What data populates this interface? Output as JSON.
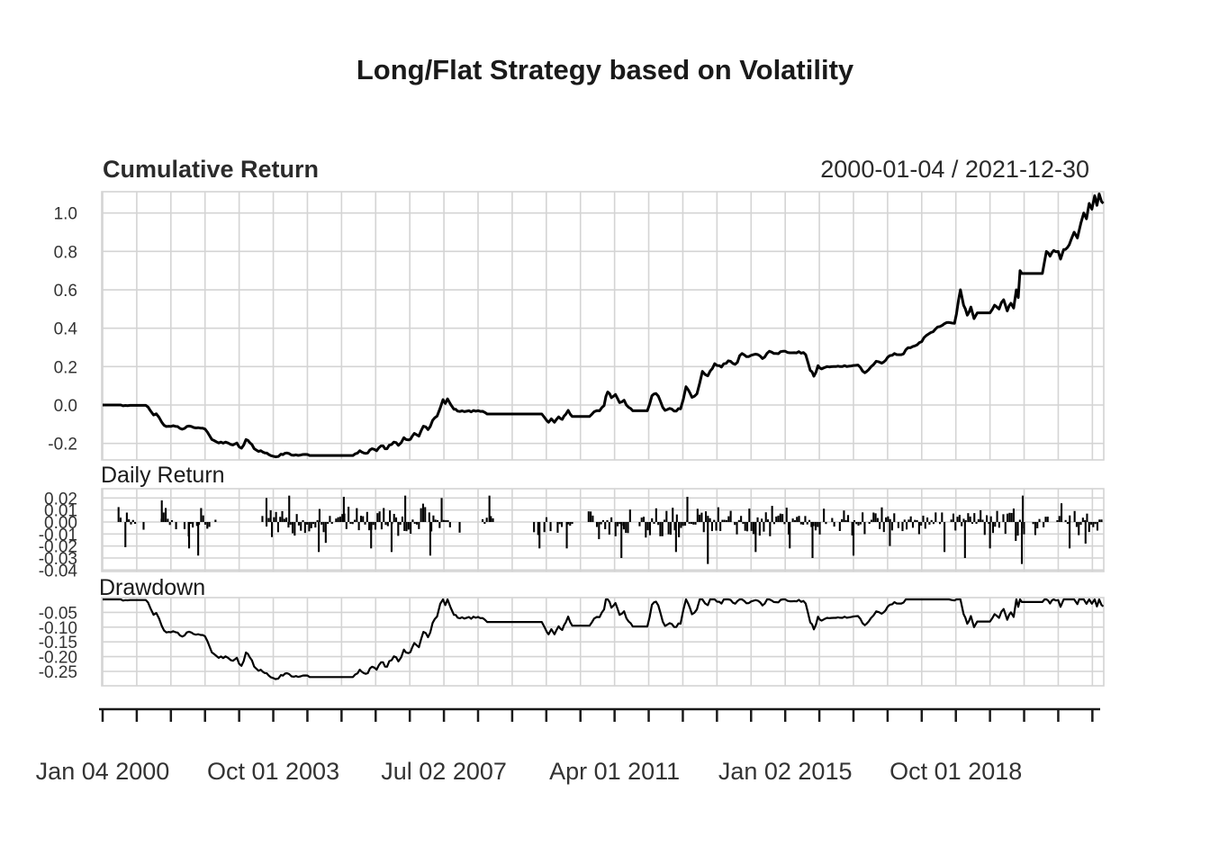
{
  "title": "Long/Flat Strategy based on Volatility",
  "colors": {
    "line": "#000000",
    "grid": "#d4d4d4",
    "axis": "#1a1a1a",
    "tick_text": "#333333",
    "title_text": "#1a1a1a"
  },
  "panels": {
    "cumulative": {
      "title": "Cumulative Return",
      "range_label": "2000-01-04 / 2021-12-30",
      "ytick_labels": [
        "1.0",
        "0.8",
        "0.6",
        "0.4",
        "0.2",
        "0.0",
        "-0.2"
      ],
      "ytick_values": [
        1.0,
        0.8,
        0.6,
        0.4,
        0.2,
        0.0,
        -0.2
      ],
      "ylim": [
        -0.3,
        1.11
      ]
    },
    "daily": {
      "title": "Daily Return",
      "ytick_labels": [
        "0.02",
        "0.01",
        "0.00",
        "-0.01",
        "-0.02",
        "-0.03",
        "-0.04"
      ],
      "ytick_values": [
        0.02,
        0.01,
        0.0,
        -0.01,
        -0.02,
        -0.03,
        -0.04
      ],
      "ylim": [
        -0.0413,
        0.0278
      ]
    },
    "drawdown": {
      "title": "Drawdown",
      "ytick_labels": [
        "-0.05",
        "-0.10",
        "-0.15",
        "-0.20",
        "-0.25"
      ],
      "ytick_values": [
        -0.05,
        -0.1,
        -0.15,
        -0.2,
        -0.25
      ],
      "ylim": [
        -0.299,
        0.0
      ]
    }
  },
  "xaxis": {
    "labels": [
      "Jan 04 2000",
      "Oct 01 2003",
      "Jul 02 2007",
      "Apr 01 2011",
      "Jan 02 2015",
      "Oct 01 2018"
    ],
    "label_years": [
      2000.0,
      2003.75,
      2007.5,
      2011.25,
      2015.0,
      2018.75
    ],
    "tick_interval_years": 0.75,
    "num_ticks": 30,
    "start_year": 2000.0,
    "end_year": 2021.99
  },
  "chart_data": [
    {
      "type": "line",
      "name": "Cumulative Return",
      "x_unit": "decimal_year",
      "points": [
        [
          2000.0,
          0.0
        ],
        [
          2000.4,
          0.0
        ],
        [
          2000.45,
          -0.004
        ],
        [
          2000.6,
          -0.002
        ],
        [
          2000.95,
          -0.002
        ],
        [
          2001.05,
          -0.03
        ],
        [
          2001.12,
          -0.052
        ],
        [
          2001.18,
          -0.046
        ],
        [
          2001.3,
          -0.09
        ],
        [
          2001.4,
          -0.112
        ],
        [
          2001.55,
          -0.108
        ],
        [
          2001.75,
          -0.126
        ],
        [
          2001.85,
          -0.112
        ],
        [
          2002.1,
          -0.118
        ],
        [
          2002.25,
          -0.125
        ],
        [
          2002.35,
          -0.16
        ],
        [
          2002.45,
          -0.185
        ],
        [
          2002.55,
          -0.198
        ],
        [
          2002.7,
          -0.193
        ],
        [
          2002.82,
          -0.206
        ],
        [
          2002.95,
          -0.198
        ],
        [
          2003.05,
          -0.225
        ],
        [
          2003.15,
          -0.18
        ],
        [
          2003.28,
          -0.206
        ],
        [
          2003.38,
          -0.235
        ],
        [
          2003.52,
          -0.245
        ],
        [
          2003.65,
          -0.258
        ],
        [
          2003.8,
          -0.27
        ],
        [
          2003.92,
          -0.256
        ],
        [
          2004.05,
          -0.25
        ],
        [
          2004.2,
          -0.262
        ],
        [
          2004.4,
          -0.258
        ],
        [
          2004.55,
          -0.263
        ],
        [
          2005.5,
          -0.263
        ],
        [
          2005.65,
          -0.238
        ],
        [
          2005.78,
          -0.252
        ],
        [
          2005.92,
          -0.228
        ],
        [
          2006.02,
          -0.238
        ],
        [
          2006.12,
          -0.213
        ],
        [
          2006.25,
          -0.228
        ],
        [
          2006.4,
          -0.193
        ],
        [
          2006.5,
          -0.21
        ],
        [
          2006.62,
          -0.17
        ],
        [
          2006.72,
          -0.182
        ],
        [
          2006.85,
          -0.148
        ],
        [
          2006.95,
          -0.162
        ],
        [
          2007.05,
          -0.11
        ],
        [
          2007.15,
          -0.128
        ],
        [
          2007.25,
          -0.08
        ],
        [
          2007.35,
          -0.058
        ],
        [
          2007.42,
          -0.015
        ],
        [
          2007.48,
          0.028
        ],
        [
          2007.53,
          0.008
        ],
        [
          2007.58,
          0.032
        ],
        [
          2007.65,
          0.002
        ],
        [
          2007.72,
          -0.022
        ],
        [
          2007.8,
          -0.032
        ],
        [
          2008.35,
          -0.033
        ],
        [
          2008.45,
          -0.047
        ],
        [
          2009.65,
          -0.047
        ],
        [
          2009.72,
          -0.068
        ],
        [
          2009.8,
          -0.09
        ],
        [
          2009.86,
          -0.072
        ],
        [
          2009.93,
          -0.09
        ],
        [
          2010.02,
          -0.062
        ],
        [
          2010.1,
          -0.075
        ],
        [
          2010.18,
          -0.048
        ],
        [
          2010.23,
          -0.028
        ],
        [
          2010.32,
          -0.06
        ],
        [
          2010.7,
          -0.06
        ],
        [
          2010.8,
          -0.035
        ],
        [
          2010.92,
          -0.03
        ],
        [
          2011.02,
          -0.003
        ],
        [
          2011.1,
          0.068
        ],
        [
          2011.18,
          0.038
        ],
        [
          2011.27,
          0.055
        ],
        [
          2011.36,
          0.012
        ],
        [
          2011.46,
          0.025
        ],
        [
          2011.56,
          -0.012
        ],
        [
          2011.65,
          -0.03
        ],
        [
          2011.97,
          -0.03
        ],
        [
          2012.07,
          0.048
        ],
        [
          2012.16,
          0.06
        ],
        [
          2012.26,
          0.018
        ],
        [
          2012.36,
          -0.028
        ],
        [
          2012.46,
          -0.018
        ],
        [
          2012.56,
          -0.032
        ],
        [
          2012.7,
          -0.02
        ],
        [
          2012.82,
          0.095
        ],
        [
          2012.95,
          0.04
        ],
        [
          2013.06,
          0.058
        ],
        [
          2013.18,
          0.175
        ],
        [
          2013.3,
          0.152
        ],
        [
          2013.45,
          0.215
        ],
        [
          2013.6,
          0.198
        ],
        [
          2013.75,
          0.23
        ],
        [
          2013.9,
          0.212
        ],
        [
          2014.05,
          0.268
        ],
        [
          2014.2,
          0.252
        ],
        [
          2014.35,
          0.265
        ],
        [
          2014.5,
          0.242
        ],
        [
          2014.65,
          0.28
        ],
        [
          2014.8,
          0.268
        ],
        [
          2014.95,
          0.28
        ],
        [
          2015.15,
          0.272
        ],
        [
          2015.3,
          0.278
        ],
        [
          2015.45,
          0.262
        ],
        [
          2015.55,
          0.18
        ],
        [
          2015.63,
          0.15
        ],
        [
          2015.72,
          0.205
        ],
        [
          2015.8,
          0.188
        ],
        [
          2015.92,
          0.2
        ],
        [
          2016.4,
          0.202
        ],
        [
          2016.6,
          0.208
        ],
        [
          2016.75,
          0.168
        ],
        [
          2016.88,
          0.198
        ],
        [
          2017.0,
          0.228
        ],
        [
          2017.12,
          0.218
        ],
        [
          2017.25,
          0.248
        ],
        [
          2017.4,
          0.268
        ],
        [
          2017.55,
          0.262
        ],
        [
          2017.7,
          0.298
        ],
        [
          2017.85,
          0.308
        ],
        [
          2018.0,
          0.33
        ],
        [
          2018.15,
          0.37
        ],
        [
          2018.3,
          0.395
        ],
        [
          2018.45,
          0.415
        ],
        [
          2018.6,
          0.43
        ],
        [
          2018.72,
          0.425
        ],
        [
          2018.85,
          0.6
        ],
        [
          2018.92,
          0.52
        ],
        [
          2019.0,
          0.468
        ],
        [
          2019.08,
          0.51
        ],
        [
          2019.15,
          0.45
        ],
        [
          2019.22,
          0.48
        ],
        [
          2019.3,
          0.48
        ],
        [
          2019.5,
          0.48
        ],
        [
          2019.6,
          0.52
        ],
        [
          2019.7,
          0.5
        ],
        [
          2019.8,
          0.548
        ],
        [
          2019.88,
          0.49
        ],
        [
          2019.96,
          0.53
        ],
        [
          2020.02,
          0.505
        ],
        [
          2020.08,
          0.6
        ],
        [
          2020.12,
          0.56
        ],
        [
          2020.16,
          0.7
        ],
        [
          2020.2,
          0.685
        ],
        [
          2020.65,
          0.685
        ],
        [
          2020.7,
          0.75
        ],
        [
          2020.74,
          0.8
        ],
        [
          2020.82,
          0.775
        ],
        [
          2020.9,
          0.805
        ],
        [
          2021.0,
          0.8
        ],
        [
          2021.05,
          0.76
        ],
        [
          2021.12,
          0.81
        ],
        [
          2021.2,
          0.82
        ],
        [
          2021.28,
          0.86
        ],
        [
          2021.35,
          0.9
        ],
        [
          2021.42,
          0.87
        ],
        [
          2021.5,
          0.95
        ],
        [
          2021.56,
          1.0
        ],
        [
          2021.62,
          0.97
        ],
        [
          2021.68,
          1.05
        ],
        [
          2021.74,
          1.02
        ],
        [
          2021.8,
          1.09
        ],
        [
          2021.85,
          1.04
        ],
        [
          2021.9,
          1.1
        ],
        [
          2021.95,
          1.06
        ],
        [
          2021.99,
          1.05
        ]
      ]
    },
    {
      "type": "bar",
      "name": "Daily Return",
      "x_unit": "decimal_year",
      "typical_amplitude": 0.012,
      "clusters": [
        [
          2000.35,
          2000.75,
          0.55
        ],
        [
          2000.9,
          2001.02,
          0.6
        ],
        [
          2001.25,
          2001.62,
          0.7
        ],
        [
          2001.8,
          2002.38,
          0.85
        ],
        [
          2002.48,
          2002.72,
          0.55
        ],
        [
          2003.42,
          2003.72,
          0.7
        ],
        [
          2003.72,
          2007.7,
          0.97
        ],
        [
          2007.8,
          2007.95,
          0.5
        ],
        [
          2008.35,
          2008.62,
          0.8
        ],
        [
          2009.48,
          2009.88,
          0.7
        ],
        [
          2010.0,
          2010.32,
          0.8
        ],
        [
          2010.68,
          2011.62,
          0.9
        ],
        [
          2011.8,
          2015.78,
          0.97
        ],
        [
          2015.85,
          2016.12,
          0.8
        ],
        [
          2016.2,
          2016.78,
          0.85
        ],
        [
          2016.85,
          2018.32,
          0.95
        ],
        [
          2018.4,
          2018.58,
          0.6
        ],
        [
          2018.65,
          2018.98,
          0.85
        ],
        [
          2019.02,
          2020.28,
          0.95
        ],
        [
          2020.45,
          2020.78,
          0.85
        ],
        [
          2020.98,
          2021.32,
          0.9
        ],
        [
          2021.36,
          2021.99,
          0.92
        ]
      ],
      "spikes": [
        [
          2000.5,
          -0.021
        ],
        [
          2001.3,
          0.018
        ],
        [
          2001.9,
          -0.022
        ],
        [
          2002.1,
          -0.028
        ],
        [
          2003.6,
          0.02
        ],
        [
          2004.1,
          0.022
        ],
        [
          2004.75,
          -0.025
        ],
        [
          2005.3,
          0.021
        ],
        [
          2005.9,
          -0.022
        ],
        [
          2006.35,
          -0.025
        ],
        [
          2006.65,
          0.022
        ],
        [
          2007.2,
          -0.028
        ],
        [
          2007.45,
          0.02
        ],
        [
          2008.5,
          0.022
        ],
        [
          2009.6,
          -0.022
        ],
        [
          2010.2,
          -0.022
        ],
        [
          2011.4,
          -0.03
        ],
        [
          2012.6,
          -0.025
        ],
        [
          2012.85,
          0.021
        ],
        [
          2013.3,
          -0.035
        ],
        [
          2014.35,
          -0.025
        ],
        [
          2015.1,
          -0.022
        ],
        [
          2015.6,
          -0.03
        ],
        [
          2016.5,
          -0.028
        ],
        [
          2017.3,
          -0.02
        ],
        [
          2018.5,
          -0.025
        ],
        [
          2018.95,
          -0.03
        ],
        [
          2019.5,
          -0.022
        ],
        [
          2020.2,
          -0.035
        ],
        [
          2020.22,
          0.022
        ],
        [
          2021.25,
          -0.022
        ],
        [
          2021.6,
          -0.018
        ]
      ]
    },
    {
      "type": "line",
      "name": "Drawdown",
      "x_unit": "decimal_year",
      "derived_from": "cumulative",
      "formula": "(1+cum)/cummax(1+cum)-1",
      "min_value": -0.27
    }
  ]
}
